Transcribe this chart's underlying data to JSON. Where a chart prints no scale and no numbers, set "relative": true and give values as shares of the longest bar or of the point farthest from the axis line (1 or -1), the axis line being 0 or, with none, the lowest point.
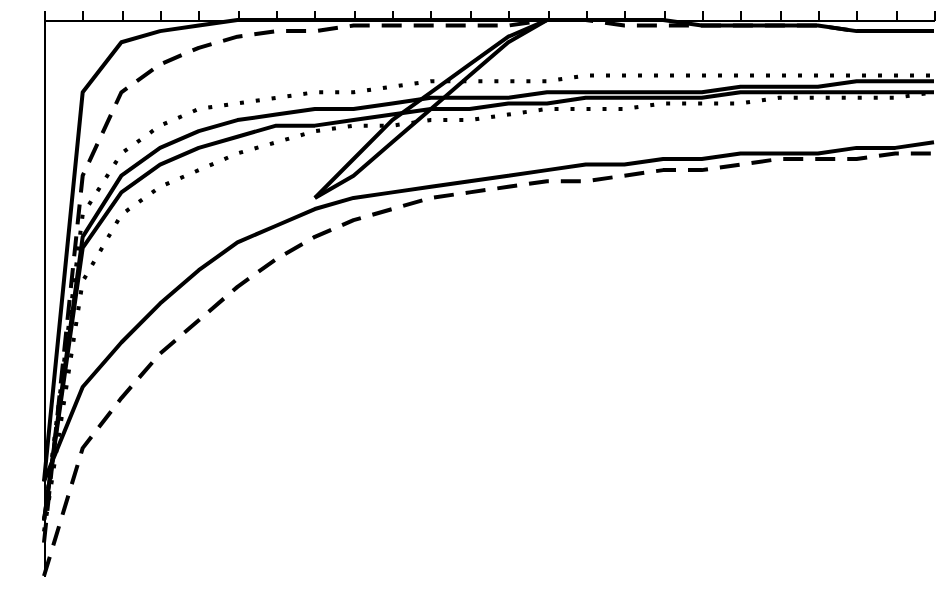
{
  "chart_data": {
    "type": "line",
    "relative": true,
    "grid": false,
    "marker": "none",
    "categories": [
      null,
      null,
      null,
      null,
      null,
      null,
      null,
      null,
      null,
      null,
      null,
      null,
      null,
      null,
      null,
      null,
      null,
      null,
      null,
      null,
      null,
      null,
      null,
      null
    ],
    "series": [
      {
        "color": "#000000",
        "line_style": "solid",
        "values": [
          0.17,
          0.87,
          0.96,
          0.98,
          0.99,
          1,
          1,
          1,
          1,
          1,
          1,
          1,
          1,
          1,
          1,
          1,
          1,
          0.99,
          0.99,
          0.99,
          0.99,
          0.98,
          0.98,
          0.98
        ]
      },
      {
        "color": "#000000",
        "line_style": "dashed",
        "values": [
          0.06,
          0.72,
          0.87,
          0.92,
          0.95,
          0.97,
          0.98,
          0.98,
          0.99,
          0.99,
          0.99,
          0.99,
          0.99,
          1,
          1,
          0.99,
          0.99,
          0.99,
          0.99,
          0.99,
          0.99,
          0.98,
          0.98,
          0.98
        ]
      },
      {
        "color": "#000000",
        "line_style": "dotted",
        "values": [
          0.1,
          0.65,
          0.76,
          0.81,
          0.84,
          0.85,
          0.86,
          0.87,
          0.87,
          0.88,
          0.89,
          0.89,
          0.89,
          0.89,
          0.9,
          0.9,
          0.9,
          0.9,
          0.9,
          0.9,
          0.9,
          0.9,
          0.9,
          0.9
        ]
      },
      {
        "color": "#000000",
        "line_style": "solid",
        "values": [
          0.1,
          0.61,
          0.72,
          0.77,
          0.8,
          0.82,
          0.83,
          0.84,
          0.84,
          0.85,
          0.86,
          0.86,
          0.86,
          0.87,
          0.87,
          0.87,
          0.87,
          0.87,
          0.88,
          0.88,
          0.88,
          0.89,
          0.89,
          0.89
        ]
      },
      {
        "color": "#000000",
        "line_style": "solid",
        "values": [
          0.1,
          0.59,
          0.69,
          0.74,
          0.77,
          0.79,
          0.81,
          0.81,
          0.82,
          0.83,
          0.84,
          0.84,
          0.85,
          0.85,
          0.86,
          0.86,
          0.86,
          0.86,
          0.87,
          0.87,
          0.87,
          0.87,
          0.87,
          0.87
        ]
      },
      {
        "color": "#000000",
        "line_style": "dotted",
        "values": [
          0.08,
          0.53,
          0.65,
          0.7,
          0.73,
          0.76,
          0.78,
          0.8,
          0.81,
          0.81,
          0.82,
          0.82,
          0.83,
          0.84,
          0.84,
          0.84,
          0.85,
          0.85,
          0.85,
          0.86,
          0.86,
          0.86,
          0.86,
          0.87
        ]
      },
      {
        "color": "#000000",
        "line_style": "solid",
        "values": [
          0.17,
          0.34,
          0.42,
          0.49,
          0.55,
          0.6,
          0.63,
          0.66,
          0.68,
          0.69,
          0.7,
          0.71,
          0.72,
          0.73,
          0.74,
          0.74,
          0.75,
          0.75,
          0.76,
          0.76,
          0.76,
          0.77,
          0.77,
          0.78
        ]
      },
      {
        "color": "#000000",
        "line_style": "dashed",
        "values": [
          0,
          0.23,
          0.32,
          0.4,
          0.46,
          0.52,
          0.57,
          0.61,
          0.64,
          0.66,
          0.68,
          0.69,
          0.7,
          0.71,
          0.71,
          0.72,
          0.73,
          0.73,
          0.74,
          0.75,
          0.75,
          0.75,
          0.76,
          0.76
        ]
      },
      {
        "color": "#000000",
        "line_style": "solid",
        "values": [
          null,
          null,
          null,
          null,
          null,
          null,
          null,
          0.68,
          0.75,
          0.82,
          0.87,
          0.92,
          0.97,
          1,
          null,
          null,
          null,
          null,
          null,
          null,
          null,
          null,
          null,
          null
        ]
      },
      {
        "color": "#000000",
        "line_style": "solid",
        "values": [
          null,
          null,
          null,
          null,
          null,
          null,
          null,
          0.68,
          0.72,
          0.78,
          0.84,
          0.9,
          0.96,
          1,
          null,
          null,
          null,
          null,
          null,
          null,
          null,
          null,
          null,
          null
        ]
      }
    ]
  }
}
